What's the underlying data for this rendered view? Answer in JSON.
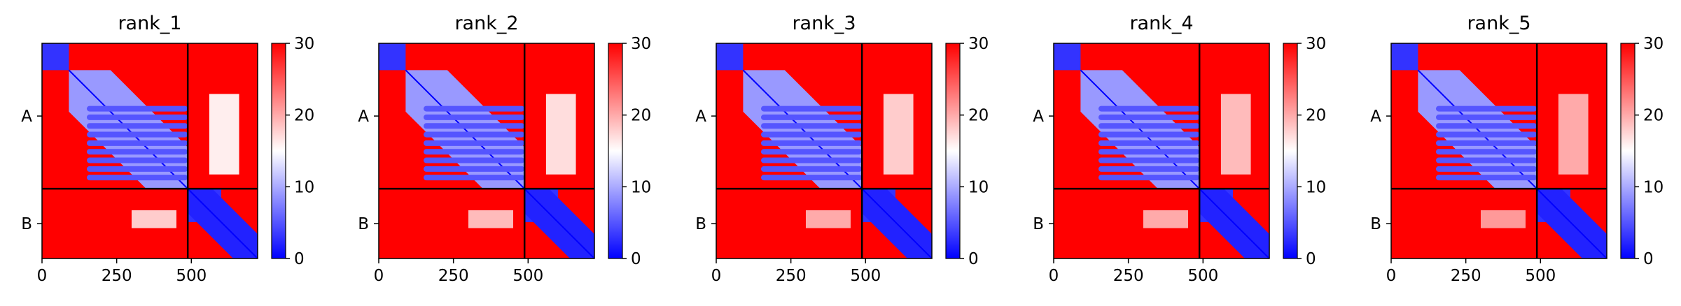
{
  "colors": {
    "low": "#0000ff",
    "mid": "#ffffff",
    "high": "#ff0000",
    "divider": "#000000"
  },
  "chart_data": [
    {
      "type": "heatmap",
      "title": "rank_1",
      "xlabel": "",
      "ylabel": "",
      "x_ticks": [
        "0",
        "250",
        "500"
      ],
      "y_ticks": [
        "A",
        "B"
      ],
      "colorbar_ticks": [
        "0",
        "10",
        "20",
        "30"
      ],
      "vmin": 0,
      "vmax": 30,
      "chain_lengths": [
        488,
        234
      ],
      "total_length": 722,
      "grid": false,
      "blocks": [
        {
          "x": [
            0,
            90
          ],
          "y": [
            0,
            90
          ],
          "value": 3
        },
        {
          "x": [
            90,
            488
          ],
          "y": [
            90,
            488
          ],
          "value": 9,
          "band": "diagonal"
        },
        {
          "x": [
            150,
            488
          ],
          "y": [
            210,
            470
          ],
          "value": 5,
          "band": "striped"
        },
        {
          "x": [
            488,
            600
          ],
          "y": [
            488,
            600
          ],
          "value": 3
        },
        {
          "x": [
            488,
            722
          ],
          "y": [
            488,
            722
          ],
          "value": 2,
          "band": "diagonal"
        },
        {
          "x": [
            560,
            660
          ],
          "y": [
            170,
            440
          ],
          "value": 16
        },
        {
          "x": [
            300,
            450
          ],
          "y": [
            560,
            620
          ],
          "value": 18
        }
      ],
      "background_value": 30
    },
    {
      "type": "heatmap",
      "title": "rank_2",
      "xlabel": "",
      "ylabel": "",
      "x_ticks": [
        "0",
        "250",
        "500"
      ],
      "y_ticks": [
        "A",
        "B"
      ],
      "colorbar_ticks": [
        "0",
        "10",
        "20",
        "30"
      ],
      "vmin": 0,
      "vmax": 30,
      "chain_lengths": [
        488,
        234
      ],
      "total_length": 722,
      "grid": false,
      "blocks": [
        {
          "x": [
            0,
            90
          ],
          "y": [
            0,
            90
          ],
          "value": 3
        },
        {
          "x": [
            90,
            488
          ],
          "y": [
            90,
            488
          ],
          "value": 9,
          "band": "diagonal"
        },
        {
          "x": [
            150,
            488
          ],
          "y": [
            210,
            470
          ],
          "value": 5,
          "band": "striped"
        },
        {
          "x": [
            488,
            600
          ],
          "y": [
            488,
            600
          ],
          "value": 3
        },
        {
          "x": [
            488,
            722
          ],
          "y": [
            488,
            722
          ],
          "value": 2,
          "band": "diagonal"
        },
        {
          "x": [
            560,
            660
          ],
          "y": [
            170,
            440
          ],
          "value": 17
        },
        {
          "x": [
            300,
            450
          ],
          "y": [
            560,
            620
          ],
          "value": 19
        }
      ],
      "background_value": 30
    },
    {
      "type": "heatmap",
      "title": "rank_3",
      "xlabel": "",
      "ylabel": "",
      "x_ticks": [
        "0",
        "250",
        "500"
      ],
      "y_ticks": [
        "A",
        "B"
      ],
      "colorbar_ticks": [
        "0",
        "10",
        "20",
        "30"
      ],
      "vmin": 0,
      "vmax": 30,
      "chain_lengths": [
        488,
        234
      ],
      "total_length": 722,
      "grid": false,
      "blocks": [
        {
          "x": [
            0,
            90
          ],
          "y": [
            0,
            90
          ],
          "value": 3
        },
        {
          "x": [
            90,
            488
          ],
          "y": [
            90,
            488
          ],
          "value": 9,
          "band": "diagonal"
        },
        {
          "x": [
            150,
            488
          ],
          "y": [
            210,
            470
          ],
          "value": 5,
          "band": "striped"
        },
        {
          "x": [
            488,
            600
          ],
          "y": [
            488,
            600
          ],
          "value": 3
        },
        {
          "x": [
            488,
            722
          ],
          "y": [
            488,
            722
          ],
          "value": 2,
          "band": "diagonal"
        },
        {
          "x": [
            560,
            660
          ],
          "y": [
            170,
            440
          ],
          "value": 18
        },
        {
          "x": [
            300,
            450
          ],
          "y": [
            560,
            620
          ],
          "value": 20
        }
      ],
      "background_value": 30
    },
    {
      "type": "heatmap",
      "title": "rank_4",
      "xlabel": "",
      "ylabel": "",
      "x_ticks": [
        "0",
        "250",
        "500"
      ],
      "y_ticks": [
        "A",
        "B"
      ],
      "colorbar_ticks": [
        "0",
        "10",
        "20",
        "30"
      ],
      "vmin": 0,
      "vmax": 30,
      "chain_lengths": [
        488,
        234
      ],
      "total_length": 722,
      "grid": false,
      "blocks": [
        {
          "x": [
            0,
            90
          ],
          "y": [
            0,
            90
          ],
          "value": 3
        },
        {
          "x": [
            90,
            488
          ],
          "y": [
            90,
            488
          ],
          "value": 9,
          "band": "diagonal"
        },
        {
          "x": [
            150,
            488
          ],
          "y": [
            210,
            470
          ],
          "value": 5,
          "band": "striped"
        },
        {
          "x": [
            488,
            600
          ],
          "y": [
            488,
            600
          ],
          "value": 3
        },
        {
          "x": [
            488,
            722
          ],
          "y": [
            488,
            722
          ],
          "value": 2,
          "band": "diagonal"
        },
        {
          "x": [
            560,
            660
          ],
          "y": [
            170,
            440
          ],
          "value": 19
        },
        {
          "x": [
            300,
            450
          ],
          "y": [
            560,
            620
          ],
          "value": 20
        }
      ],
      "background_value": 30
    },
    {
      "type": "heatmap",
      "title": "rank_5",
      "xlabel": "",
      "ylabel": "",
      "x_ticks": [
        "0",
        "250",
        "500"
      ],
      "y_ticks": [
        "A",
        "B"
      ],
      "colorbar_ticks": [
        "0",
        "10",
        "20",
        "30"
      ],
      "vmin": 0,
      "vmax": 30,
      "chain_lengths": [
        488,
        234
      ],
      "total_length": 722,
      "grid": false,
      "blocks": [
        {
          "x": [
            0,
            90
          ],
          "y": [
            0,
            90
          ],
          "value": 3
        },
        {
          "x": [
            90,
            488
          ],
          "y": [
            90,
            488
          ],
          "value": 9,
          "band": "diagonal"
        },
        {
          "x": [
            150,
            488
          ],
          "y": [
            210,
            470
          ],
          "value": 5,
          "band": "striped"
        },
        {
          "x": [
            488,
            600
          ],
          "y": [
            488,
            600
          ],
          "value": 3
        },
        {
          "x": [
            488,
            722
          ],
          "y": [
            488,
            722
          ],
          "value": 2,
          "band": "diagonal"
        },
        {
          "x": [
            560,
            660
          ],
          "y": [
            170,
            440
          ],
          "value": 20
        },
        {
          "x": [
            300,
            450
          ],
          "y": [
            560,
            620
          ],
          "value": 21
        }
      ],
      "background_value": 30
    }
  ]
}
